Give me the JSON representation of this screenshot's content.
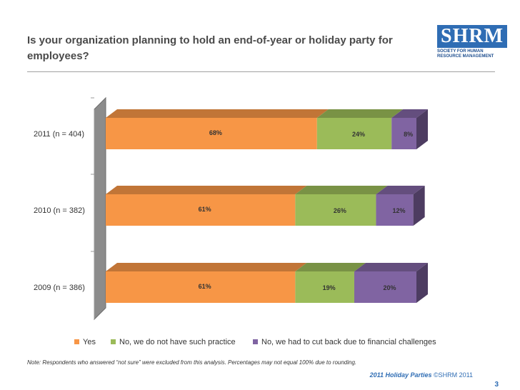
{
  "slide": {
    "title": "Is your organization planning to hold an end-of-year or holiday party for employees?",
    "note": "Note: Respondents who answered “not sure” were excluded from this analysis. Percentages may not equal 100% due to rounding.",
    "footer_title": "2011 Holiday Parties",
    "footer_copyright": "©SHRM 2011",
    "page_number": "3"
  },
  "logo": {
    "wordmark": "SHRM",
    "tagline": "Society for Human Resource Management"
  },
  "chart_data": {
    "type": "bar",
    "orientation": "horizontal",
    "stacked": true,
    "percent": true,
    "categories": [
      "2011 (n = 404)",
      "2010 (n = 382)",
      "2009 (n = 386)"
    ],
    "series": [
      {
        "name": "Yes",
        "values": [
          68,
          61,
          61
        ],
        "labels": [
          "68%",
          "61%",
          "61%"
        ],
        "color": "#f79646"
      },
      {
        "name": "No, we do not have such practice",
        "values": [
          24,
          26,
          19
        ],
        "labels": [
          "24%",
          "26%",
          "19%"
        ],
        "color": "#9bbb59"
      },
      {
        "name": "No, we had to cut back due to financial challenges",
        "values": [
          8,
          12,
          20
        ],
        "labels": [
          "8%",
          "12%",
          "20%"
        ],
        "color": "#8064a2"
      }
    ],
    "xlim": [
      0,
      100
    ],
    "legend_position": "bottom"
  }
}
